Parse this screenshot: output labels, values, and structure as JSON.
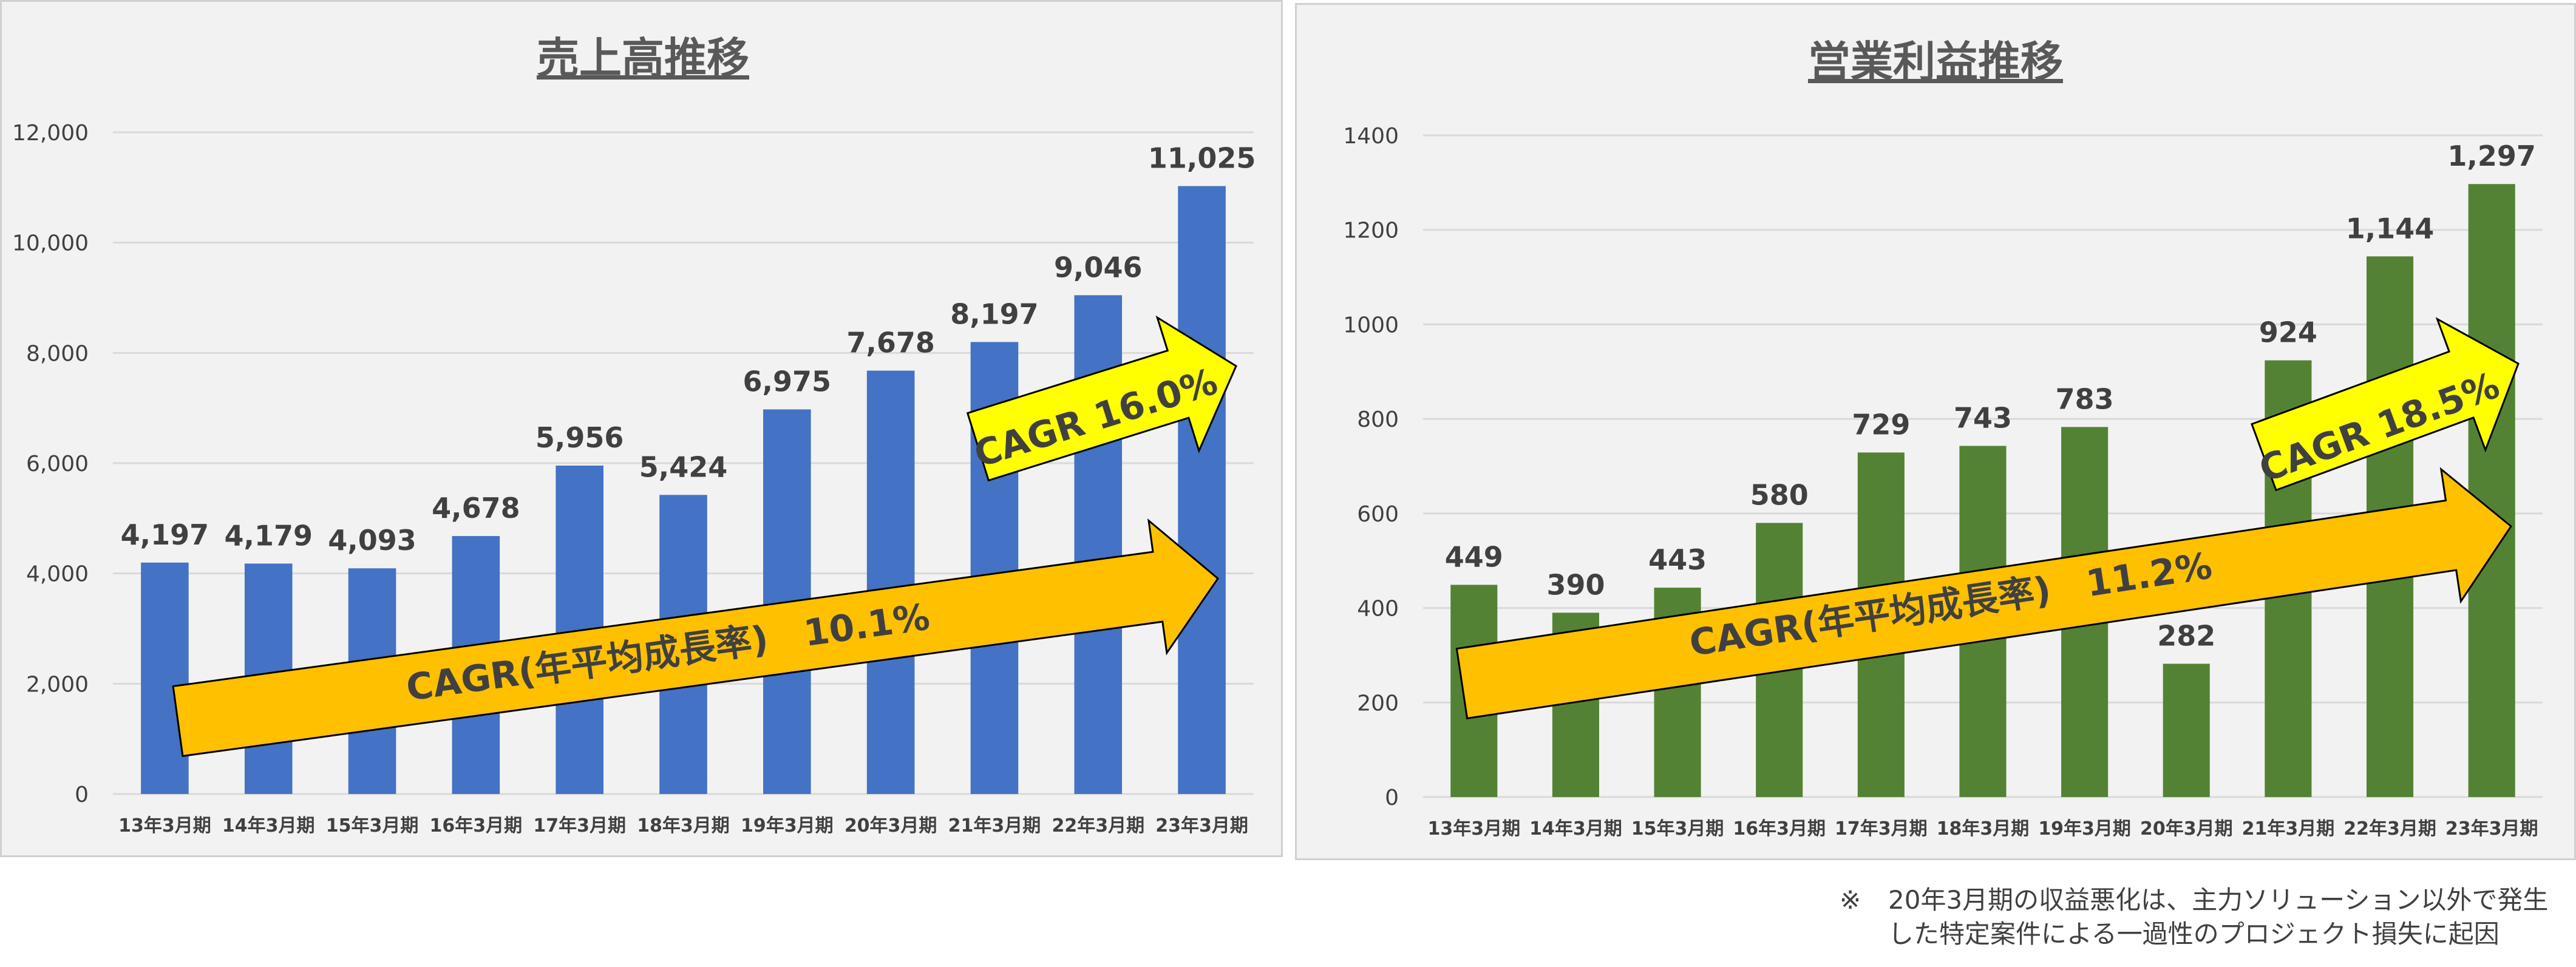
{
  "chart_data": [
    {
      "type": "bar",
      "title": "売上高推移",
      "categories": [
        "13年3月期",
        "14年3月期",
        "15年3月期",
        "16年3月期",
        "17年3月期",
        "18年3月期",
        "19年3月期",
        "20年3月期",
        "21年3月期",
        "22年3月期",
        "23年3月期"
      ],
      "values": [
        4197,
        4179,
        4093,
        4678,
        5956,
        5424,
        6975,
        7678,
        8197,
        9046,
        11025
      ],
      "value_labels": [
        "4,197",
        "4,179",
        "4,093",
        "4,678",
        "5,956",
        "5,424",
        "6,975",
        "7,678",
        "8,197",
        "9,046",
        "11,025"
      ],
      "yticks": [
        "0",
        "2,000",
        "4,000",
        "6,000",
        "8,000",
        "10,000",
        "12,000"
      ],
      "ylim": [
        0,
        12000
      ],
      "grid": true,
      "color": "#4472c4",
      "annotations": {
        "long_term": "CAGR(年平均成長率)　10.1%",
        "short_term": "CAGR 16.0%"
      }
    },
    {
      "type": "bar",
      "title": "営業利益推移",
      "categories": [
        "13年3月期",
        "14年3月期",
        "15年3月期",
        "16年3月期",
        "17年3月期",
        "18年3月期",
        "19年3月期",
        "20年3月期",
        "21年3月期",
        "22年3月期",
        "23年3月期"
      ],
      "values": [
        449,
        390,
        443,
        580,
        729,
        743,
        783,
        282,
        924,
        1144,
        1297
      ],
      "value_labels": [
        "449",
        "390",
        "443",
        "580",
        "729",
        "743",
        "783",
        "282",
        "924",
        "1,144",
        "1,297"
      ],
      "yticks": [
        "0",
        "200",
        "400",
        "600",
        "800",
        "1000",
        "1200",
        "1400"
      ],
      "ylim": [
        0,
        1400
      ],
      "grid": true,
      "color": "#548235",
      "annotations": {
        "long_term": "CAGR(年平均成長率)　11.2%",
        "short_term": "CAGR 18.5%"
      }
    }
  ],
  "colors": {
    "orange_arrow": "#ffc000",
    "yellow_arrow": "#ffff00"
  },
  "note": {
    "mark": "※",
    "line1": "20年3月期の収益悪化は、主力ソリューション以外で発生",
    "line2": "した特定案件による一過性のプロジェクト損失に起因"
  }
}
